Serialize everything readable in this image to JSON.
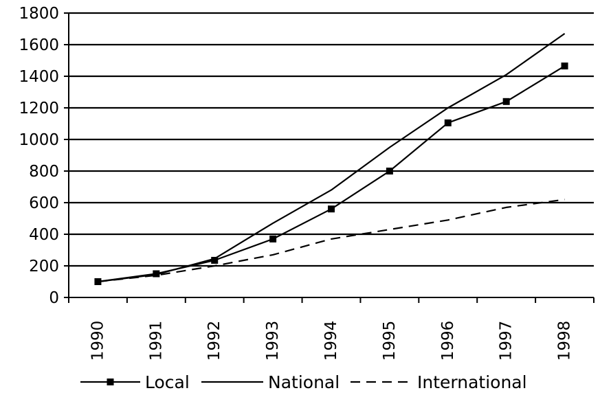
{
  "chart_data": {
    "type": "line",
    "x": [
      "1990",
      "1991",
      "1992",
      "1993",
      "1994",
      "1995",
      "1996",
      "1997",
      "1998"
    ],
    "ylim": [
      0,
      1800
    ],
    "yticks": [
      0,
      200,
      400,
      600,
      800,
      1000,
      1200,
      1400,
      1600,
      1800
    ],
    "grid": "horizontal",
    "legend_position": "bottom",
    "series": [
      {
        "name": "Local",
        "values": [
          100,
          150,
          235,
          370,
          560,
          800,
          1105,
          1240,
          1465
        ],
        "style": "solid-square-markers",
        "color": "#000000"
      },
      {
        "name": "National",
        "values": [
          100,
          145,
          245,
          470,
          680,
          950,
          1200,
          1410,
          1670
        ],
        "style": "solid",
        "color": "#000000"
      },
      {
        "name": "International",
        "values": [
          100,
          140,
          200,
          270,
          370,
          430,
          490,
          570,
          620
        ],
        "style": "dashed",
        "color": "#000000"
      }
    ]
  }
}
